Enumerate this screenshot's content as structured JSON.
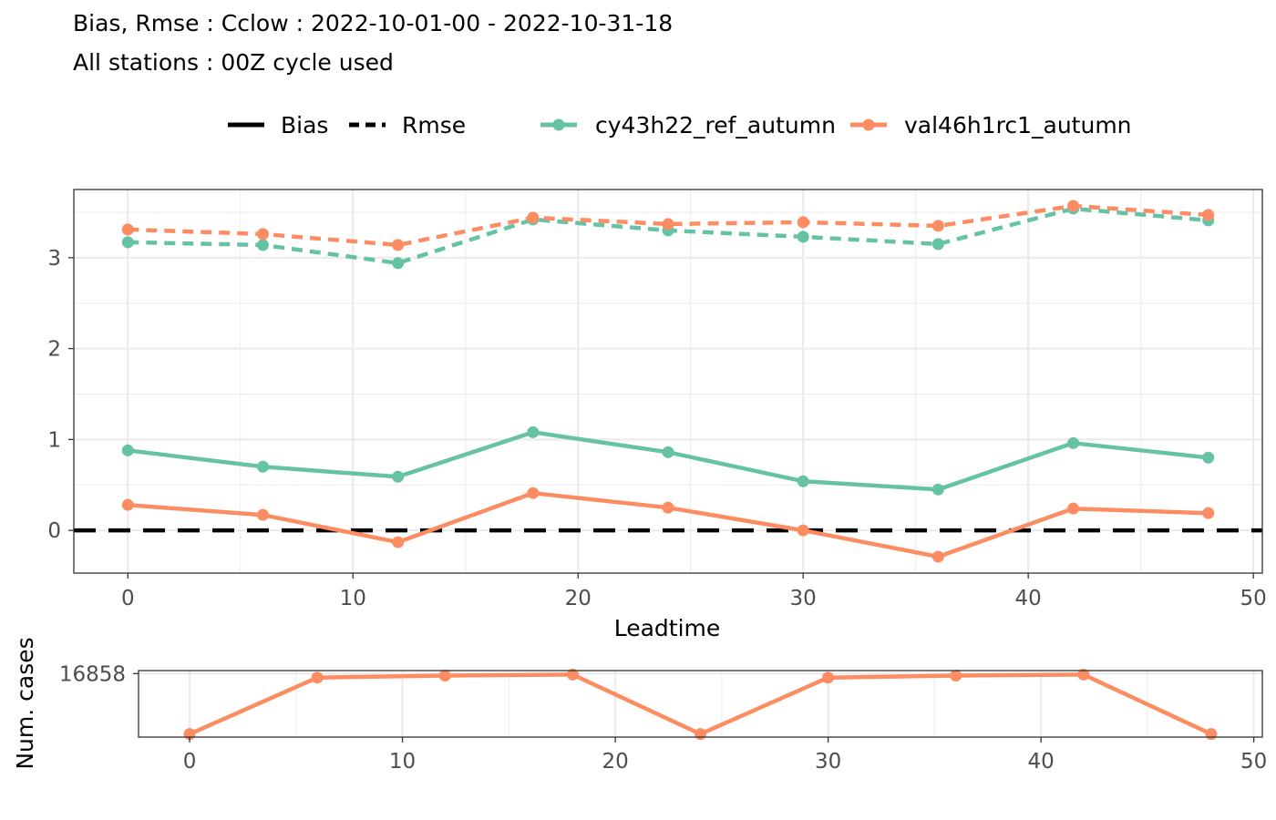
{
  "header": {
    "title_line1": "Bias, Rmse : Cclow : 2022-10-01-00 - 2022-10-31-18",
    "title_line2": "All stations : 00Z cycle used"
  },
  "legend": {
    "linetypes": [
      {
        "label": "Bias",
        "style": "solid"
      },
      {
        "label": "Rmse",
        "style": "dashed"
      }
    ],
    "models": [
      {
        "label": "cy43h22_ref_autumn",
        "color": "#66c2a5"
      },
      {
        "label": "val46h1rc1_autumn",
        "color": "#fc8d62"
      }
    ]
  },
  "colors": {
    "cy43h22_ref_autumn": "#66c2a5",
    "val46h1rc1_autumn": "#fc8d62",
    "zero_line": "#000000",
    "grid": "#ebebeb",
    "panel_border": "#333333"
  },
  "chart_data": [
    {
      "type": "line",
      "x": [
        0,
        6,
        12,
        18,
        24,
        30,
        36,
        42,
        48
      ],
      "xlabel": "Leadtime",
      "ylabel": "",
      "xlim": [
        -2.4,
        50.4
      ],
      "ylim": [
        -0.47,
        3.75
      ],
      "xticks": [
        "0",
        "10",
        "20",
        "30",
        "40",
        "50"
      ],
      "yticks": [
        "0",
        "1",
        "2",
        "3"
      ],
      "grid": true,
      "zero_line": {
        "y": 0,
        "style": "dashed"
      },
      "series": [
        {
          "model": "cy43h22_ref_autumn",
          "score": "Bias",
          "style": "solid",
          "values": [
            0.88,
            0.7,
            0.59,
            1.08,
            0.86,
            0.54,
            0.45,
            0.96,
            0.8
          ]
        },
        {
          "model": "val46h1rc1_autumn",
          "score": "Bias",
          "style": "solid",
          "values": [
            0.28,
            0.17,
            -0.13,
            0.41,
            0.25,
            0.0,
            -0.29,
            0.24,
            0.19
          ]
        },
        {
          "model": "cy43h22_ref_autumn",
          "score": "Rmse",
          "style": "dashed",
          "values": [
            3.17,
            3.14,
            2.94,
            3.42,
            3.3,
            3.23,
            3.15,
            3.54,
            3.41
          ]
        },
        {
          "model": "val46h1rc1_autumn",
          "score": "Rmse",
          "style": "dashed",
          "values": [
            3.31,
            3.26,
            3.14,
            3.44,
            3.37,
            3.39,
            3.35,
            3.57,
            3.47
          ]
        }
      ]
    },
    {
      "type": "line",
      "x": [
        0,
        6,
        12,
        18,
        24,
        30,
        36,
        42,
        48
      ],
      "ylabel": "Num. cases",
      "xticks": [
        "0",
        "10",
        "20",
        "30",
        "40",
        "50"
      ],
      "yticks": [
        "16858"
      ],
      "ylim": [
        16795,
        16861
      ],
      "grid": true,
      "series": [
        {
          "model": "val46h1rc1_autumn",
          "values": [
            16798,
            16854,
            16856,
            16857,
            16798,
            16854,
            16856,
            16857,
            16798
          ]
        }
      ]
    }
  ]
}
